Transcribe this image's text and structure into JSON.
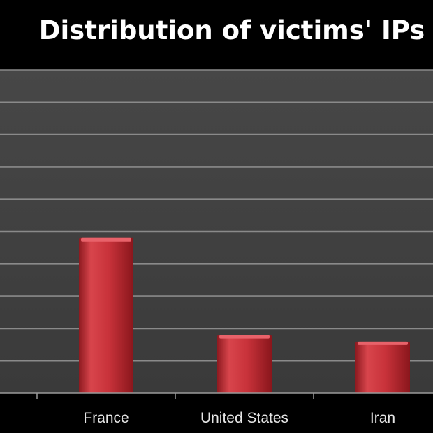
{
  "chart_data": {
    "type": "bar",
    "title": "Distribution of victims' IPs",
    "xlabel": "",
    "ylabel": "",
    "categories": [
      "",
      "France",
      "United States",
      "Iran"
    ],
    "values": [
      0,
      48,
      18,
      16
    ],
    "ylim": [
      0,
      100
    ],
    "grid": true,
    "legend": "none",
    "colors": {
      "background": "#000000",
      "plot_area": "#3f3f3f",
      "gridline": "#8a8a8a",
      "bar": "#c8323a",
      "bar_highlight": "#e8626a",
      "bar_shadow": "#7a1218",
      "text": "#e6e6e6",
      "title": "#ffffff"
    }
  }
}
